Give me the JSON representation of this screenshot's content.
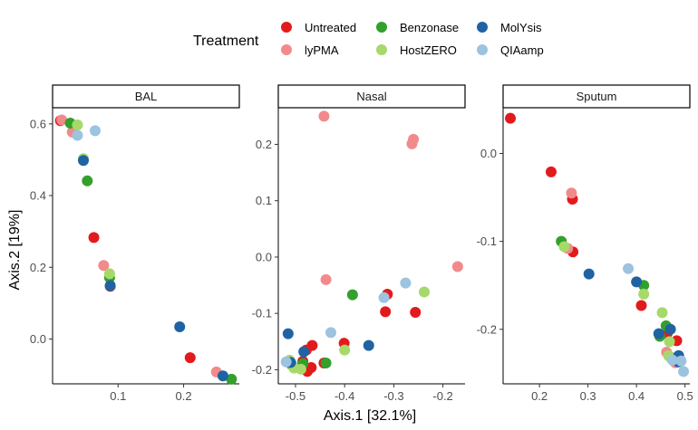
{
  "chart_data": {
    "type": "scatter",
    "xlabel": "Axis.1   [32.1%]",
    "ylabel": "Axis.2   [19%]",
    "legend": {
      "title": "Treatment",
      "placement": "top",
      "entries": [
        {
          "name": "Untreated",
          "color": "#E31A1C"
        },
        {
          "name": "lyPMA",
          "color": "#F28A8C"
        },
        {
          "name": "Benzonase",
          "color": "#33A02C"
        },
        {
          "name": "HostZERO",
          "color": "#A6D96A"
        },
        {
          "name": "MolYsis",
          "color": "#1F63A3"
        },
        {
          "name": "QIAamp",
          "color": "#9CC3E0"
        }
      ]
    },
    "facets": [
      {
        "label": "BAL",
        "xlim": [
          0.0,
          0.285
        ],
        "ylim": [
          -0.125,
          0.645
        ],
        "xticks": [
          0.1,
          0.2
        ],
        "xtick_labels": [
          "0.1",
          "0.2"
        ],
        "yticks": [
          0.0,
          0.2,
          0.4,
          0.6
        ],
        "ytick_labels": [
          "0.0",
          "0.2",
          "0.4",
          "0.6"
        ],
        "series": [
          {
            "name": "Untreated",
            "points": [
              [
                0.012,
                0.609
              ],
              [
                0.063,
                0.283
              ],
              [
                0.088,
                0.147
              ],
              [
                0.21,
                -0.052
              ]
            ]
          },
          {
            "name": "lyPMA",
            "points": [
              [
                0.014,
                0.611
              ],
              [
                0.03,
                0.577
              ],
              [
                0.078,
                0.205
              ],
              [
                0.25,
                -0.092
              ]
            ]
          },
          {
            "name": "Benzonase",
            "points": [
              [
                0.027,
                0.602
              ],
              [
                0.053,
                0.441
              ],
              [
                0.087,
                0.171
              ],
              [
                0.273,
                -0.112
              ]
            ]
          },
          {
            "name": "HostZERO",
            "points": [
              [
                0.038,
                0.597
              ],
              [
                0.047,
                0.503
              ],
              [
                0.087,
                0.182
              ]
            ]
          },
          {
            "name": "MolYsis",
            "points": [
              [
                0.047,
                0.498
              ],
              [
                0.088,
                0.149
              ],
              [
                0.194,
                0.034
              ],
              [
                0.26,
                -0.103
              ]
            ]
          },
          {
            "name": "QIAamp",
            "points": [
              [
                0.038,
                0.568
              ],
              [
                0.065,
                0.581
              ]
            ]
          }
        ]
      },
      {
        "label": "Nasal",
        "xlim": [
          -0.535,
          -0.155
        ],
        "ylim": [
          -0.225,
          0.265
        ],
        "xticks": [
          -0.5,
          -0.4,
          -0.3,
          -0.2
        ],
        "xtick_labels": [
          "-0.5",
          "-0.4",
          "-0.3",
          "-0.2"
        ],
        "yticks": [
          -0.2,
          -0.1,
          0.0,
          0.1,
          0.2
        ],
        "ytick_labels": [
          "-0.2",
          "-0.1",
          "0.0",
          "0.1",
          "0.2"
        ],
        "series": [
          {
            "name": "Untreated",
            "points": [
              [
                -0.466,
                -0.157
              ],
              [
                -0.478,
                -0.165
              ],
              [
                -0.485,
                -0.185
              ],
              [
                -0.442,
                -0.188
              ],
              [
                -0.468,
                -0.196
              ],
              [
                -0.476,
                -0.203
              ],
              [
                -0.401,
                -0.153
              ],
              [
                -0.317,
                -0.097
              ],
              [
                -0.313,
                -0.066
              ],
              [
                -0.256,
                -0.098
              ]
            ]
          },
          {
            "name": "lyPMA",
            "points": [
              [
                -0.442,
                0.25
              ],
              [
                -0.263,
                0.201
              ],
              [
                -0.26,
                0.209
              ],
              [
                -0.17,
                -0.017
              ],
              [
                -0.438,
                -0.04
              ]
            ]
          },
          {
            "name": "Benzonase",
            "points": [
              [
                -0.485,
                -0.189
              ],
              [
                -0.384,
                -0.067
              ],
              [
                -0.438,
                -0.188
              ],
              [
                -0.508,
                -0.191
              ]
            ]
          },
          {
            "name": "HostZERO",
            "points": [
              [
                -0.489,
                -0.199
              ],
              [
                -0.503,
                -0.197
              ],
              [
                -0.512,
                -0.183
              ],
              [
                -0.4,
                -0.165
              ],
              [
                -0.238,
                -0.062
              ]
            ]
          },
          {
            "name": "MolYsis",
            "points": [
              [
                -0.515,
                -0.136
              ],
              [
                -0.483,
                -0.168
              ],
              [
                -0.51,
                -0.187
              ],
              [
                -0.351,
                -0.157
              ]
            ]
          },
          {
            "name": "QIAamp",
            "points": [
              [
                -0.519,
                -0.186
              ],
              [
                -0.428,
                -0.134
              ],
              [
                -0.32,
                -0.072
              ],
              [
                -0.276,
                -0.046
              ]
            ]
          }
        ]
      },
      {
        "label": "Sputum",
        "xlim": [
          0.125,
          0.51
        ],
        "ylim": [
          -0.262,
          0.052
        ],
        "xticks": [
          0.2,
          0.3,
          0.4,
          0.5
        ],
        "xtick_labels": [
          "0.2",
          "0.3",
          "0.4",
          "0.5"
        ],
        "yticks": [
          -0.2,
          -0.1,
          0.0
        ],
        "ytick_labels": [
          "-0.2",
          "-0.1",
          "0.0"
        ],
        "series": [
          {
            "name": "Untreated",
            "points": [
              [
                0.14,
                0.04
              ],
              [
                0.224,
                -0.021
              ],
              [
                0.268,
                -0.052
              ],
              [
                0.269,
                -0.112
              ],
              [
                0.41,
                -0.173
              ],
              [
                0.483,
                -0.213
              ],
              [
                0.463,
                -0.205
              ]
            ]
          },
          {
            "name": "lyPMA",
            "points": [
              [
                0.266,
                -0.045
              ],
              [
                0.258,
                -0.108
              ],
              [
                0.472,
                -0.232
              ],
              [
                0.48,
                -0.238
              ],
              [
                0.462,
                -0.226
              ]
            ]
          },
          {
            "name": "Benzonase",
            "points": [
              [
                0.245,
                -0.1
              ],
              [
                0.415,
                -0.15
              ],
              [
                0.448,
                -0.208
              ],
              [
                0.461,
                -0.196
              ],
              [
                0.472,
                -0.233
              ]
            ]
          },
          {
            "name": "HostZERO",
            "points": [
              [
                0.251,
                -0.106
              ],
              [
                0.415,
                -0.16
              ],
              [
                0.453,
                -0.181
              ],
              [
                0.468,
                -0.214
              ],
              [
                0.466,
                -0.23
              ]
            ]
          },
          {
            "name": "MolYsis",
            "points": [
              [
                0.302,
                -0.137
              ],
              [
                0.4,
                -0.146
              ],
              [
                0.446,
                -0.205
              ],
              [
                0.47,
                -0.2
              ],
              [
                0.487,
                -0.23
              ],
              [
                0.486,
                -0.237
              ]
            ]
          },
          {
            "name": "QIAamp",
            "points": [
              [
                0.383,
                -0.131
              ],
              [
                0.474,
                -0.235
              ],
              [
                0.492,
                -0.236
              ],
              [
                0.497,
                -0.248
              ]
            ]
          }
        ]
      }
    ]
  }
}
